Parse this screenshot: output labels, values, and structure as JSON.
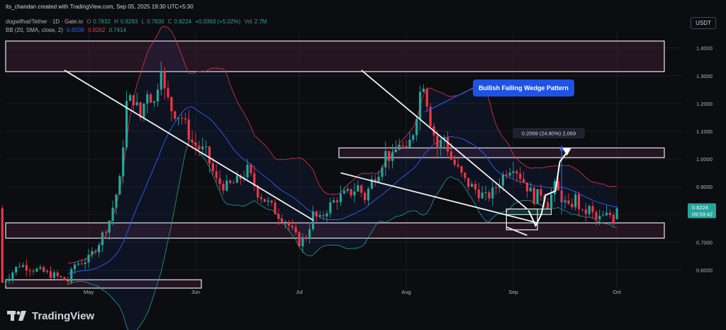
{
  "header": {
    "credit": "its_chandan created with TradingView.com, Sep 05, 2025 19:30 UTC+5:30",
    "symbol": "dogwifhat/Tether · 1D · Gate.io",
    "ohlc": {
      "o_label": "O",
      "o": "0.7832",
      "h_label": "H",
      "h": "0.8293",
      "l_label": "L",
      "l": "0.7830",
      "c_label": "C",
      "c": "0.8224",
      "change": "+0.0393 (+5.02%)",
      "vol_label": "Vol",
      "vol": "2.7M"
    },
    "indicator": {
      "label": "BB (20, SMA, close, 2)",
      "middle": "0.8338",
      "upper": "0.9262",
      "lower": "0.7414"
    }
  },
  "currency_button": "USDT",
  "brand": "TradingView",
  "colors": {
    "background": "#0b0d11",
    "up": "#26a69a",
    "down": "#f23645",
    "bb_upper": "#f23645",
    "bb_basis": "#2962ff",
    "bb_lower": "#26a69a",
    "zone_fill": "#3a1e30",
    "annotation_blue": "#1e53e5"
  },
  "chart_data": {
    "type": "candlestick",
    "x_axis": {
      "ticks": [
        "May",
        "Jun",
        "Jul",
        "Aug",
        "Sep",
        "Oct"
      ]
    },
    "y_axis": {
      "range": [
        0.54,
        1.44
      ],
      "ticks": [
        "1.4000",
        "1.3000",
        "1.2000",
        "1.1000",
        "1.0000",
        "0.9000",
        "0.8000",
        "0.7000",
        "0.6000"
      ]
    },
    "last_price": {
      "value": "0.8224",
      "countdown": "09:59:42"
    },
    "annotations": {
      "pattern_label": "Bullish Falling Wedge Pattern",
      "measure_label": "0.2069 (24.80%) 2,069"
    },
    "zones": [
      {
        "from": 1.315,
        "to": 1.425
      },
      {
        "from": 1.005,
        "to": 1.04
      },
      {
        "from": 0.715,
        "to": 0.77
      },
      {
        "from": 0.535,
        "to": 0.565
      }
    ],
    "trendlines": [
      {
        "from": [
          "Apr 24",
          1.32
        ],
        "to": [
          "Jul 05",
          0.78
        ]
      },
      {
        "from": [
          "Jul 13",
          0.95
        ],
        "to": [
          "Sep 08",
          0.77
        ]
      },
      {
        "from": [
          "Jul 19",
          1.32
        ],
        "to": [
          "Sep 05",
          0.82
        ]
      },
      {
        "from": [
          "Aug 30",
          0.755
        ],
        "to": [
          "Sep 05",
          0.725
        ]
      }
    ],
    "projection": {
      "path": [
        [
          0.82,
          0.82
        ],
        [
          0.77,
          0.87
        ],
        [
          0.87,
          0.88
        ],
        [
          0.97,
          1.03
        ],
        [
          1.0,
          1.0
        ]
      ]
    },
    "bb_window": 20
  }
}
